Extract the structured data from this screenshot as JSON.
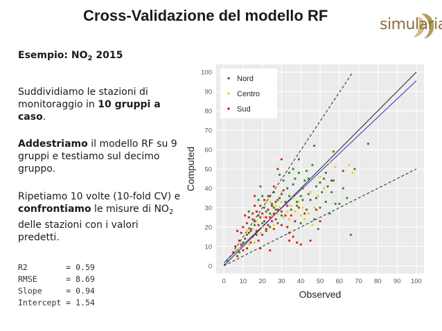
{
  "slide": {
    "title": "Cross-Validazione del modello RF",
    "logo_text": "simularia",
    "example": {
      "prefix": "Esempio: NO",
      "sub": "2",
      "suffix": " 2015"
    },
    "p1": {
      "a": "Suddividiamo le stazioni di monitoraggio in ",
      "b": "10 gruppi a caso",
      "c": "."
    },
    "p2": {
      "a": "Addestriamo",
      "b": " il modello RF su 9 gruppi e testiamo sul decimo gruppo."
    },
    "p3": {
      "a": "Ripetiamo 10 volte (10-fold CV) e ",
      "b": "confrontiamo",
      "c": " le misure di NO",
      "sub": "2",
      "d": " delle stazioni con i valori predetti."
    },
    "stats": [
      {
        "label": "R2        ",
        "value": "= 0.59"
      },
      {
        "label": "RMSE      ",
        "value": "= 8.69"
      },
      {
        "label": "Slope     ",
        "value": "= 0.94"
      },
      {
        "label": "Intercept ",
        "value": "= 1.54"
      }
    ]
  },
  "chart_data": {
    "type": "scatter",
    "xlabel": "Observed",
    "ylabel": "Computed",
    "xlim": [
      -4,
      104
    ],
    "ylim": [
      -4,
      104
    ],
    "ticks": [
      0,
      10,
      20,
      30,
      40,
      50,
      60,
      70,
      80,
      90,
      100
    ],
    "grid": true,
    "legend_position": "top-left",
    "series": [
      {
        "name": "Nord",
        "color": "#2e8b22",
        "points": [
          [
            8,
            7
          ],
          [
            10,
            12
          ],
          [
            12,
            16
          ],
          [
            14,
            18
          ],
          [
            15,
            24
          ],
          [
            16,
            21
          ],
          [
            18,
            26
          ],
          [
            18,
            34
          ],
          [
            19,
            41
          ],
          [
            20,
            22
          ],
          [
            21,
            30
          ],
          [
            22,
            28
          ],
          [
            23,
            36
          ],
          [
            24,
            20
          ],
          [
            25,
            32
          ],
          [
            26,
            38
          ],
          [
            27,
            29
          ],
          [
            28,
            34
          ],
          [
            29,
            47
          ],
          [
            30,
            37
          ],
          [
            30,
            26
          ],
          [
            31,
            44
          ],
          [
            32,
            33
          ],
          [
            33,
            40
          ],
          [
            34,
            36
          ],
          [
            35,
            29
          ],
          [
            36,
            42
          ],
          [
            36,
            50
          ],
          [
            37,
            45
          ],
          [
            38,
            31
          ],
          [
            38,
            33
          ],
          [
            39,
            48
          ],
          [
            40,
            36
          ],
          [
            40,
            22
          ],
          [
            41,
            40
          ],
          [
            42,
            44
          ],
          [
            43,
            29
          ],
          [
            44,
            37
          ],
          [
            44,
            45
          ],
          [
            45,
            34
          ],
          [
            46,
            52
          ],
          [
            47,
            24
          ],
          [
            48,
            41
          ],
          [
            48,
            35
          ],
          [
            49,
            19
          ],
          [
            50,
            30
          ],
          [
            50,
            43
          ],
          [
            51,
            38
          ],
          [
            52,
            45
          ],
          [
            53,
            33
          ],
          [
            54,
            41
          ],
          [
            55,
            27
          ],
          [
            56,
            38
          ],
          [
            57,
            44
          ],
          [
            58,
            32
          ],
          [
            60,
            32
          ],
          [
            62,
            40
          ],
          [
            64,
            35
          ],
          [
            66,
            16
          ],
          [
            68,
            50
          ],
          [
            75,
            63
          ],
          [
            13,
            28
          ],
          [
            17,
            16
          ],
          [
            20,
            36
          ],
          [
            22,
            18
          ],
          [
            24,
            27
          ],
          [
            26,
            30
          ],
          [
            28,
            22
          ],
          [
            34,
            48
          ],
          [
            39,
            55
          ],
          [
            41,
            34
          ],
          [
            43,
            49
          ],
          [
            47,
            62
          ],
          [
            53,
            48
          ],
          [
            57,
            59
          ]
        ]
      },
      {
        "name": "Centro",
        "color": "#e8d21a",
        "points": [
          [
            8,
            9
          ],
          [
            11,
            14
          ],
          [
            13,
            11
          ],
          [
            15,
            19
          ],
          [
            17,
            23
          ],
          [
            19,
            17
          ],
          [
            21,
            25
          ],
          [
            23,
            29
          ],
          [
            24,
            33
          ],
          [
            25,
            26
          ],
          [
            26,
            21
          ],
          [
            27,
            31
          ],
          [
            28,
            27
          ],
          [
            29,
            30
          ],
          [
            30,
            33
          ],
          [
            31,
            25
          ],
          [
            33,
            28
          ],
          [
            34,
            24
          ],
          [
            35,
            31
          ],
          [
            37,
            28
          ],
          [
            39,
            33
          ],
          [
            41,
            30
          ],
          [
            42,
            24
          ],
          [
            44,
            27
          ],
          [
            46,
            21
          ],
          [
            47,
            30
          ],
          [
            49,
            36
          ],
          [
            50,
            46
          ],
          [
            52,
            40
          ],
          [
            55,
            53
          ],
          [
            58,
            51
          ],
          [
            65,
            52
          ],
          [
            67,
            48
          ],
          [
            20,
            20
          ],
          [
            22,
            33
          ],
          [
            30,
            38
          ],
          [
            36,
            35
          ],
          [
            40,
            26
          ],
          [
            45,
            38
          ],
          [
            16,
            12
          ],
          [
            12,
            18
          ]
        ]
      },
      {
        "name": "Sud",
        "color": "#d42020",
        "points": [
          [
            5,
            7
          ],
          [
            6,
            10
          ],
          [
            7,
            5
          ],
          [
            8,
            13
          ],
          [
            9,
            11
          ],
          [
            9,
            17
          ],
          [
            10,
            8
          ],
          [
            10,
            20
          ],
          [
            11,
            14
          ],
          [
            12,
            9
          ],
          [
            12,
            22
          ],
          [
            13,
            17
          ],
          [
            13,
            25
          ],
          [
            14,
            12
          ],
          [
            14,
            19
          ],
          [
            15,
            27
          ],
          [
            15,
            15
          ],
          [
            16,
            23
          ],
          [
            16,
            31
          ],
          [
            17,
            18
          ],
          [
            17,
            28
          ],
          [
            18,
            13
          ],
          [
            18,
            21
          ],
          [
            19,
            25
          ],
          [
            19,
            31
          ],
          [
            20,
            16
          ],
          [
            20,
            27
          ],
          [
            21,
            23
          ],
          [
            21,
            34
          ],
          [
            22,
            19
          ],
          [
            22,
            25
          ],
          [
            23,
            29
          ],
          [
            23,
            21
          ],
          [
            24,
            36
          ],
          [
            24,
            25
          ],
          [
            25,
            23
          ],
          [
            25,
            31
          ],
          [
            26,
            27
          ],
          [
            26,
            41
          ],
          [
            27,
            24
          ],
          [
            27,
            33
          ],
          [
            28,
            29
          ],
          [
            28,
            50
          ],
          [
            29,
            35
          ],
          [
            30,
            21
          ],
          [
            30,
            28
          ],
          [
            31,
            39
          ],
          [
            32,
            26
          ],
          [
            33,
            31
          ],
          [
            34,
            17
          ],
          [
            34,
            13
          ],
          [
            35,
            26
          ],
          [
            36,
            15
          ],
          [
            37,
            23
          ],
          [
            38,
            12
          ],
          [
            39,
            30
          ],
          [
            40,
            11
          ],
          [
            42,
            27
          ],
          [
            45,
            13
          ],
          [
            48,
            29
          ],
          [
            50,
            23
          ],
          [
            56,
            44
          ],
          [
            62,
            49
          ],
          [
            30,
            55
          ],
          [
            24,
            8
          ],
          [
            19,
            9
          ],
          [
            11,
            26
          ],
          [
            7,
            18
          ],
          [
            16,
            36
          ],
          [
            26,
            19
          ],
          [
            33,
            20
          ]
        ]
      }
    ],
    "reference_lines": [
      {
        "name": "1:1",
        "color": "#333333",
        "style": "solid",
        "points": [
          [
            0,
            0
          ],
          [
            100,
            100
          ]
        ]
      },
      {
        "name": "fit",
        "color": "#3a3ac8",
        "style": "solid",
        "points": [
          [
            0,
            1.54
          ],
          [
            100,
            95.54
          ]
        ]
      },
      {
        "name": "upper",
        "color": "#333333",
        "style": "dashed",
        "points": [
          [
            0,
            0
          ],
          [
            67,
            100
          ]
        ]
      },
      {
        "name": "lower",
        "color": "#333333",
        "style": "dashed",
        "points": [
          [
            0,
            0
          ],
          [
            100,
            50
          ]
        ]
      }
    ]
  }
}
